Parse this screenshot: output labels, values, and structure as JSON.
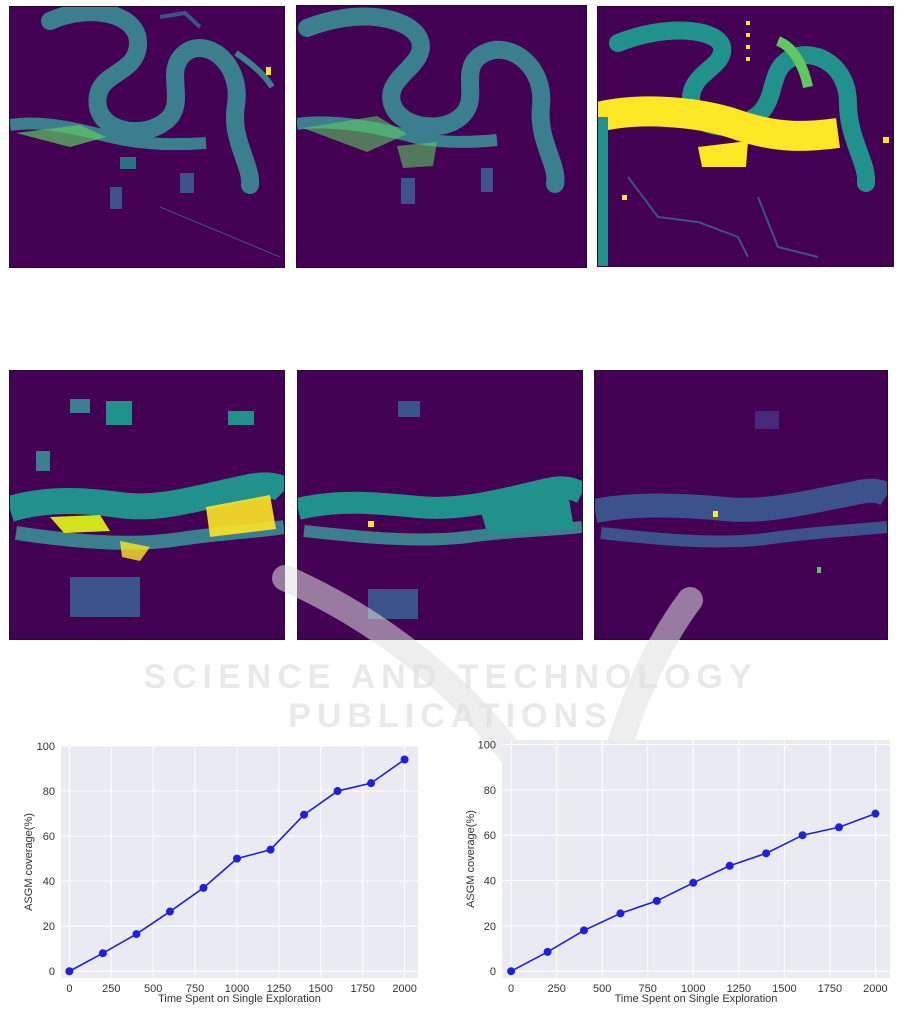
{
  "watermark": {
    "text": "SCIENCE AND TECHNOLOGY PUBLICATIONS"
  },
  "colors": {
    "background": "#440154",
    "river": "#3b7f8e",
    "mid": "#21918c",
    "high": "#5ec962",
    "peak": "#fde725",
    "plot_bg": "#eaeaf2",
    "line": "#1f1fe0"
  },
  "heatmaps": {
    "row1": [
      "heatmap",
      "heatmap",
      "heatmap"
    ],
    "row2": [
      "heatmap",
      "heatmap",
      "heatmap"
    ]
  },
  "chart_data": [
    {
      "type": "line",
      "title": "",
      "xlabel": "Time Spent on Single Exploration",
      "ylabel": "ASGM coverage(%)",
      "x": [
        0,
        200,
        400,
        600,
        800,
        1000,
        1200,
        1400,
        1600,
        1800,
        2000
      ],
      "y": [
        0,
        8,
        16.5,
        26.5,
        37,
        50,
        54,
        69.5,
        80,
        83.5,
        94
      ],
      "xlim": [
        -50,
        2080
      ],
      "ylim": [
        -3,
        100
      ],
      "xticks": [
        0,
        250,
        500,
        750,
        1000,
        1250,
        1500,
        1750,
        2000
      ],
      "yticks": [
        0,
        20,
        40,
        60,
        80,
        100
      ],
      "grid": true
    },
    {
      "type": "line",
      "title": "",
      "xlabel": "Time Spent on Single Exploration",
      "ylabel": "ASGM coverage(%)",
      "x": [
        0,
        200,
        400,
        600,
        800,
        1000,
        1200,
        1400,
        1600,
        1800,
        2000
      ],
      "y": [
        0,
        8.5,
        18,
        25.5,
        31,
        39,
        46.5,
        52,
        60,
        63.5,
        69.5
      ],
      "xlim": [
        -50,
        2080
      ],
      "ylim": [
        -3,
        102
      ],
      "xticks": [
        0,
        250,
        500,
        750,
        1000,
        1250,
        1500,
        1750,
        2000
      ],
      "yticks": [
        0,
        20,
        40,
        60,
        80,
        100
      ],
      "grid": true
    }
  ]
}
